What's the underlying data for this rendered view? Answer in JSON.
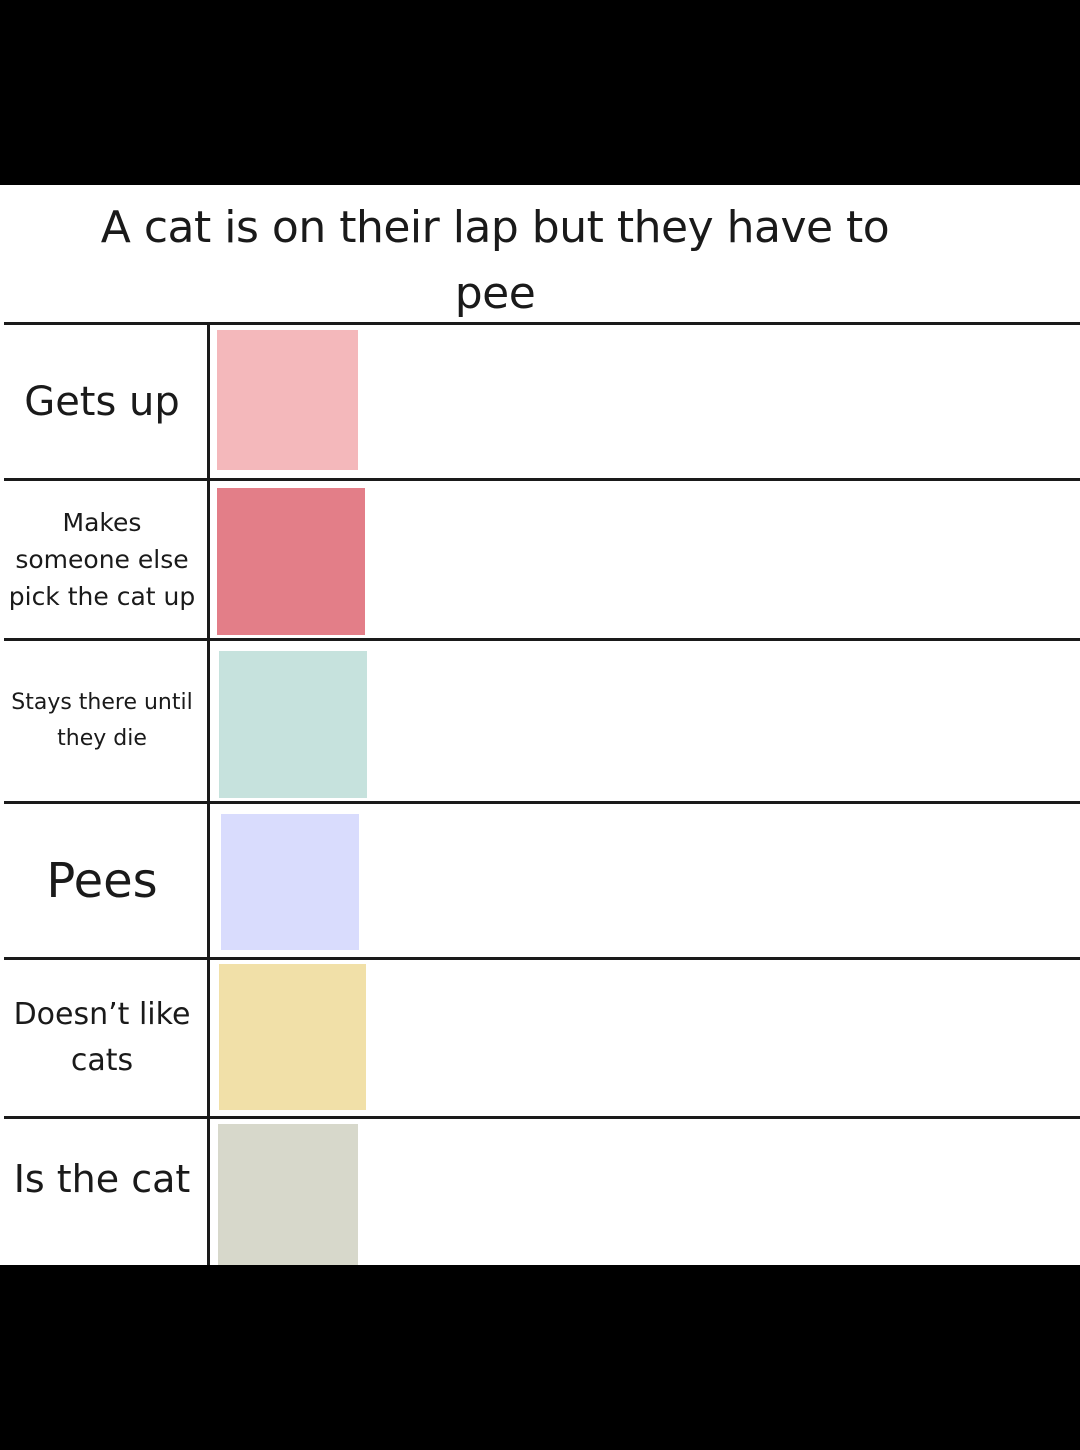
{
  "title": "A cat is on their lap but they have to pee",
  "rows": [
    {
      "label": "Gets up",
      "color": "#f4b8bb"
    },
    {
      "label": "Makes someone else pick the cat up",
      "color": "#e37e88"
    },
    {
      "label": "Stays there until they die",
      "color": "#c6e2dd"
    },
    {
      "label": "Pees",
      "color": "#d9dcfd"
    },
    {
      "label": "Doesn’t like cats",
      "color": "#f1e0a8"
    },
    {
      "label": "Is the cat",
      "color": "#d7d8cb"
    }
  ]
}
